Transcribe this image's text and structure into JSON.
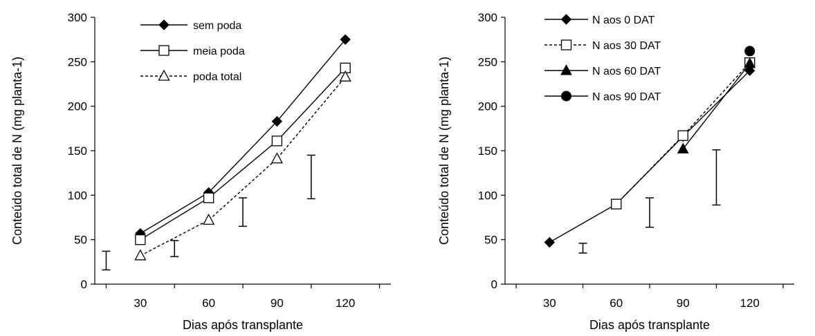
{
  "chart_data": [
    {
      "type": "line",
      "xlabel": "Dias após transplante",
      "ylabel": "Conteúdo total de N (mg planta-1)",
      "x": [
        30,
        60,
        90,
        120
      ],
      "xlim": [
        10,
        140
      ],
      "ylim": [
        0,
        300
      ],
      "yticks": [
        0,
        50,
        100,
        150,
        200,
        250,
        300
      ],
      "grid": false,
      "legend_position": "top-left",
      "series": [
        {
          "name": "sem poda",
          "marker": "diamond-filled",
          "dash": "solid",
          "values": [
            57,
            103,
            183,
            275
          ]
        },
        {
          "name": "meia poda",
          "marker": "square-open",
          "dash": "solid",
          "values": [
            50,
            97,
            161,
            243
          ]
        },
        {
          "name": "poda total",
          "marker": "triangle-open",
          "dash": "dashed",
          "values": [
            32,
            72,
            141,
            233
          ]
        }
      ],
      "error_bars": [
        {
          "x": 30,
          "low": 16,
          "high": 37
        },
        {
          "x": 60,
          "low": 31,
          "high": 49
        },
        {
          "x": 90,
          "low": 65,
          "high": 97
        },
        {
          "x": 120,
          "low": 96,
          "high": 145
        }
      ]
    },
    {
      "type": "line",
      "xlabel": "Dias após transplante",
      "ylabel": "Conteúdo total de N (mg planta-1)",
      "x": [
        30,
        60,
        90,
        120
      ],
      "xlim": [
        10,
        140
      ],
      "ylim": [
        0,
        300
      ],
      "yticks": [
        0,
        50,
        100,
        150,
        200,
        250,
        300
      ],
      "grid": false,
      "legend_position": "top-left",
      "series": [
        {
          "name": "N aos 0 DAT",
          "marker": "diamond-filled",
          "dash": "solid",
          "x": [
            30,
            60,
            90,
            120
          ],
          "values": [
            47,
            90,
            166,
            240
          ]
        },
        {
          "name": "N aos 30 DAT",
          "marker": "square-open",
          "dash": "dashed",
          "x": [
            60,
            90,
            120
          ],
          "values": [
            90,
            167,
            249
          ]
        },
        {
          "name": "N aos 60 DAT",
          "marker": "triangle-filled",
          "dash": "solid",
          "x": [
            90,
            120
          ],
          "values": [
            152,
            248
          ]
        },
        {
          "name": "N aos 90 DAT",
          "marker": "circle-filled",
          "dash": "solid",
          "x": [
            120
          ],
          "values": [
            262
          ]
        }
      ],
      "error_bars": [
        {
          "x": 60,
          "low": 35,
          "high": 46
        },
        {
          "x": 90,
          "low": 64,
          "high": 97
        },
        {
          "x": 120,
          "low": 89,
          "high": 151
        }
      ]
    }
  ]
}
